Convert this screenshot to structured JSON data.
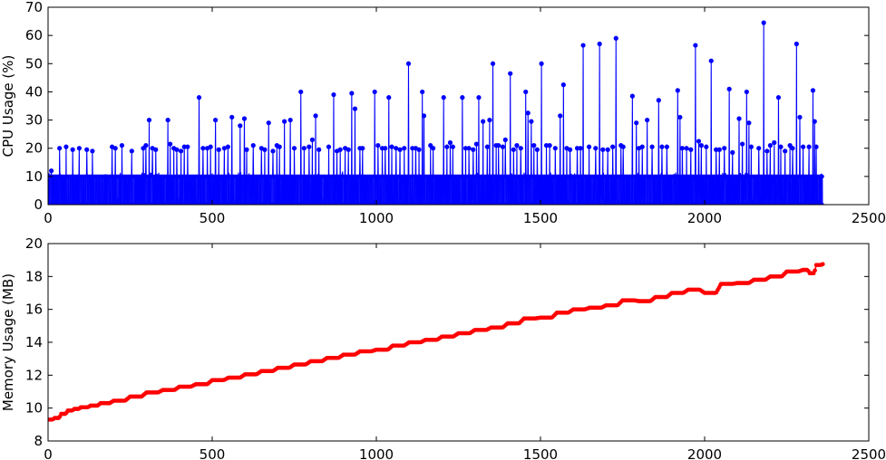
{
  "chart_data": [
    {
      "type": "line",
      "ylabel": "CPU Usage (%)",
      "xlabel": "",
      "xlim": [
        0,
        2500
      ],
      "ylim": [
        0,
        70
      ],
      "x_ticks": [
        0,
        500,
        1000,
        1500,
        2000,
        2500
      ],
      "y_ticks": [
        0,
        10,
        20,
        30,
        40,
        50,
        60,
        70
      ],
      "marker": "circle",
      "color": "#0000ff",
      "n_points": 2360,
      "baseline_range": [
        0,
        10
      ],
      "series": [
        {
          "note_spikes": "x/y of visible spike peaks",
          "spikes": [
            [
              10,
              12
            ],
            [
              35,
              20
            ],
            [
              55,
              20.5
            ],
            [
              75,
              19.5
            ],
            [
              95,
              20
            ],
            [
              118,
              19.5
            ],
            [
              135,
              19
            ],
            [
              195,
              20.5
            ],
            [
              205,
              20
            ],
            [
              225,
              21
            ],
            [
              255,
              19
            ],
            [
              290,
              20
            ],
            [
              298,
              21
            ],
            [
              308,
              30
            ],
            [
              318,
              20
            ],
            [
              328,
              19.5
            ],
            [
              365,
              30
            ],
            [
              372,
              21.5
            ],
            [
              383,
              20
            ],
            [
              392,
              19.5
            ],
            [
              405,
              19
            ],
            [
              415,
              20.5
            ],
            [
              425,
              20.5
            ],
            [
              460,
              38
            ],
            [
              472,
              20
            ],
            [
              485,
              20
            ],
            [
              495,
              20.5
            ],
            [
              510,
              30
            ],
            [
              520,
              19.5
            ],
            [
              537,
              20
            ],
            [
              548,
              20.5
            ],
            [
              560,
              31
            ],
            [
              585,
              28
            ],
            [
              598,
              30.5
            ],
            [
              605,
              19.5
            ],
            [
              625,
              21
            ],
            [
              650,
              20
            ],
            [
              660,
              19.5
            ],
            [
              672,
              29
            ],
            [
              685,
              19
            ],
            [
              697,
              21
            ],
            [
              705,
              20.5
            ],
            [
              720,
              29.5
            ],
            [
              738,
              30
            ],
            [
              750,
              20
            ],
            [
              770,
              40
            ],
            [
              780,
              20
            ],
            [
              795,
              20.5
            ],
            [
              805,
              23
            ],
            [
              815,
              31.5
            ],
            [
              825,
              19.5
            ],
            [
              855,
              20.5
            ],
            [
              870,
              39
            ],
            [
              880,
              19
            ],
            [
              890,
              19.5
            ],
            [
              905,
              20
            ],
            [
              915,
              19.5
            ],
            [
              925,
              39.5
            ],
            [
              935,
              34
            ],
            [
              950,
              20
            ],
            [
              958,
              20
            ],
            [
              995,
              40
            ],
            [
              1005,
              21
            ],
            [
              1018,
              20
            ],
            [
              1027,
              20
            ],
            [
              1038,
              38
            ],
            [
              1047,
              20.5
            ],
            [
              1060,
              20
            ],
            [
              1072,
              19.5
            ],
            [
              1085,
              20
            ],
            [
              1098,
              50
            ],
            [
              1110,
              20
            ],
            [
              1120,
              20
            ],
            [
              1130,
              19.5
            ],
            [
              1140,
              40
            ],
            [
              1145,
              31.5
            ],
            [
              1165,
              21
            ],
            [
              1173,
              20
            ],
            [
              1205,
              38
            ],
            [
              1215,
              20.5
            ],
            [
              1225,
              22
            ],
            [
              1233,
              20.5
            ],
            [
              1262,
              38
            ],
            [
              1272,
              20
            ],
            [
              1282,
              20
            ],
            [
              1295,
              19.5
            ],
            [
              1305,
              21.5
            ],
            [
              1312,
              38
            ],
            [
              1325,
              29.5
            ],
            [
              1338,
              20.5
            ],
            [
              1345,
              30
            ],
            [
              1355,
              50
            ],
            [
              1365,
              21
            ],
            [
              1372,
              21
            ],
            [
              1385,
              20.5
            ],
            [
              1393,
              23
            ],
            [
              1408,
              46.5
            ],
            [
              1418,
              19.5
            ],
            [
              1428,
              21
            ],
            [
              1440,
              20
            ],
            [
              1455,
              40
            ],
            [
              1462,
              32.5
            ],
            [
              1472,
              29.5
            ],
            [
              1480,
              21
            ],
            [
              1490,
              19.5
            ],
            [
              1503,
              50
            ],
            [
              1518,
              21
            ],
            [
              1528,
              21
            ],
            [
              1545,
              20
            ],
            [
              1560,
              31.5
            ],
            [
              1570,
              42.5
            ],
            [
              1580,
              20
            ],
            [
              1590,
              19.5
            ],
            [
              1612,
              20
            ],
            [
              1622,
              20
            ],
            [
              1630,
              56.5
            ],
            [
              1648,
              20.5
            ],
            [
              1668,
              20
            ],
            [
              1680,
              57
            ],
            [
              1690,
              19.5
            ],
            [
              1705,
              19.5
            ],
            [
              1720,
              20.5
            ],
            [
              1730,
              59
            ],
            [
              1745,
              21
            ],
            [
              1752,
              20.5
            ],
            [
              1780,
              38.5
            ],
            [
              1792,
              29
            ],
            [
              1800,
              20
            ],
            [
              1810,
              20.5
            ],
            [
              1825,
              30
            ],
            [
              1840,
              20.5
            ],
            [
              1860,
              37
            ],
            [
              1870,
              20.5
            ],
            [
              1885,
              20.5
            ],
            [
              1918,
              40.5
            ],
            [
              1925,
              31
            ],
            [
              1932,
              20
            ],
            [
              1945,
              20
            ],
            [
              1958,
              19.5
            ],
            [
              1972,
              56.5
            ],
            [
              1982,
              22.5
            ],
            [
              1990,
              21
            ],
            [
              2005,
              20.5
            ],
            [
              2020,
              51
            ],
            [
              2035,
              19.5
            ],
            [
              2045,
              19.5
            ],
            [
              2060,
              20
            ],
            [
              2075,
              41
            ],
            [
              2085,
              18.5
            ],
            [
              2105,
              30.5
            ],
            [
              2115,
              21.5
            ],
            [
              2128,
              40
            ],
            [
              2135,
              29
            ],
            [
              2142,
              20.5
            ],
            [
              2165,
              20
            ],
            [
              2180,
              64.5
            ],
            [
              2190,
              19
            ],
            [
              2200,
              21
            ],
            [
              2212,
              22
            ],
            [
              2225,
              38
            ],
            [
              2232,
              20.5
            ],
            [
              2245,
              19
            ],
            [
              2260,
              21
            ],
            [
              2268,
              20
            ],
            [
              2280,
              57
            ],
            [
              2290,
              31
            ],
            [
              2300,
              20.5
            ],
            [
              2318,
              20.5
            ],
            [
              2330,
              40.5
            ],
            [
              2335,
              29.5
            ],
            [
              2340,
              20.5
            ],
            [
              2355,
              10
            ]
          ]
        }
      ]
    },
    {
      "type": "line",
      "ylabel": "Memory Usage (MB)",
      "xlabel": "",
      "xlim": [
        0,
        2500
      ],
      "ylim": [
        8,
        20
      ],
      "x_ticks": [
        0,
        500,
        1000,
        1500,
        2000,
        2500
      ],
      "y_ticks": [
        8,
        10,
        12,
        14,
        16,
        18,
        20
      ],
      "marker": "circle",
      "color": "#ff0000",
      "series": [
        {
          "x": [
            0,
            20,
            40,
            60,
            80,
            100,
            130,
            160,
            200,
            250,
            300,
            350,
            400,
            450,
            500,
            550,
            600,
            650,
            700,
            750,
            800,
            850,
            900,
            950,
            1000,
            1050,
            1100,
            1150,
            1200,
            1250,
            1300,
            1350,
            1400,
            1450,
            1500,
            1550,
            1600,
            1650,
            1700,
            1750,
            1800,
            1850,
            1900,
            1950,
            2000,
            2050,
            2100,
            2150,
            2200,
            2250,
            2300,
            2320,
            2340,
            2360
          ],
          "y": [
            9.3,
            9.4,
            9.65,
            9.85,
            9.95,
            10.05,
            10.15,
            10.3,
            10.45,
            10.7,
            10.95,
            11.1,
            11.3,
            11.45,
            11.7,
            11.85,
            12.05,
            12.25,
            12.45,
            12.65,
            12.85,
            13.05,
            13.25,
            13.45,
            13.55,
            13.8,
            14.0,
            14.15,
            14.35,
            14.55,
            14.75,
            14.9,
            15.15,
            15.45,
            15.5,
            15.8,
            16.0,
            16.1,
            16.25,
            16.55,
            16.5,
            16.75,
            17.0,
            17.2,
            17.0,
            17.55,
            17.6,
            17.8,
            18.0,
            18.3,
            18.4,
            18.2,
            18.7,
            18.75
          ]
        }
      ]
    }
  ]
}
